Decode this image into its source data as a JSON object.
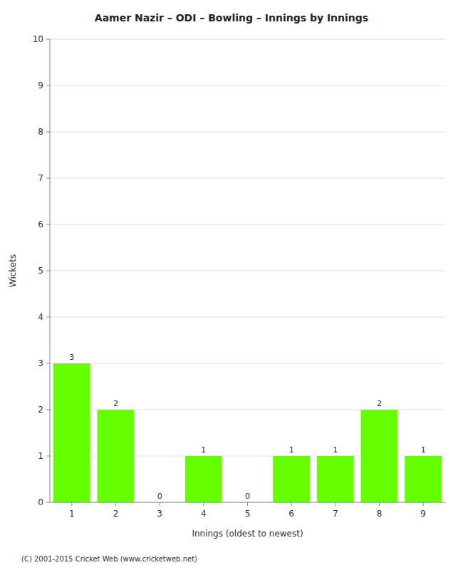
{
  "chart_data": {
    "type": "bar",
    "title": "Aamer Nazir – ODI – Bowling – Innings by Innings",
    "xlabel": "Innings (oldest to newest)",
    "ylabel": "Wickets",
    "categories": [
      "1",
      "2",
      "3",
      "4",
      "5",
      "6",
      "7",
      "8",
      "9"
    ],
    "values": [
      3,
      2,
      0,
      1,
      0,
      1,
      1,
      2,
      1
    ],
    "color": "#66ff00",
    "ylim": [
      0,
      10
    ],
    "yticks": [
      0,
      1,
      2,
      3,
      4,
      5,
      6,
      7,
      8,
      9,
      10
    ],
    "grid": true,
    "data_labels": true,
    "footer": "(C) 2001-2015 Cricket Web (www.cricketweb.net)"
  }
}
